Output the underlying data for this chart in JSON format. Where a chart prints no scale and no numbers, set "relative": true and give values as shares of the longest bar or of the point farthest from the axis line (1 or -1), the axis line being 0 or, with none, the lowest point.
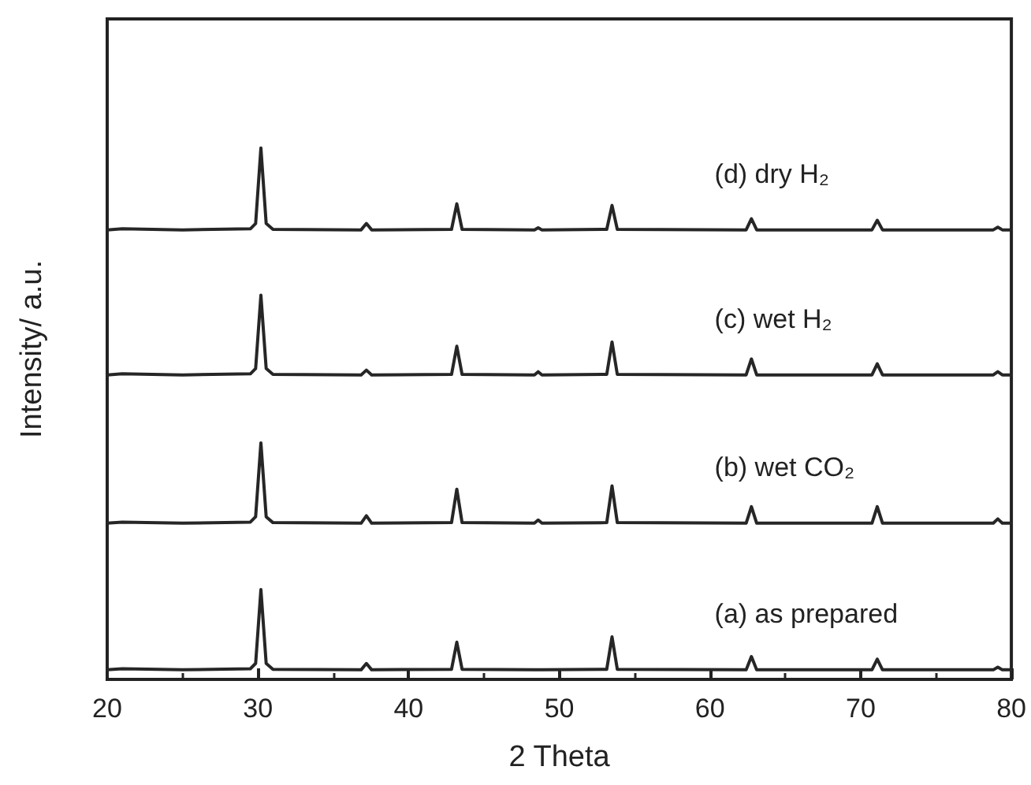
{
  "chart_data": {
    "type": "line",
    "relative": true,
    "xlabel": "2 Theta",
    "ylabel": "Intensity/ a.u.",
    "xlim": [
      20,
      80
    ],
    "xticks": [
      20,
      30,
      40,
      50,
      60,
      70,
      80
    ],
    "grid": false,
    "legend": false,
    "marker": "none",
    "line_style": "solid",
    "x": [
      20,
      21,
      25,
      29.5,
      29.85,
      30.2,
      30.55,
      31,
      36.85,
      37.2,
      37.55,
      42.85,
      43.2,
      43.55,
      48.35,
      48.6,
      48.85,
      53.15,
      53.5,
      53.85,
      62.4,
      62.75,
      63.1,
      70.75,
      71.1,
      71.45,
      78.8,
      79.1,
      79.4,
      80
    ],
    "series": [
      {
        "name": "(a) as prepared",
        "color": "#262626",
        "values": [
          0.018,
          0.02,
          0.018,
          0.02,
          0.03,
          0.169,
          0.03,
          0.019,
          0.018,
          0.03,
          0.018,
          0.019,
          0.07,
          0.019,
          0.018,
          0.018,
          0.018,
          0.019,
          0.08,
          0.019,
          0.018,
          0.043,
          0.018,
          0.018,
          0.038,
          0.018,
          0.018,
          0.023,
          0.018,
          0.018
        ]
      },
      {
        "name": "(b) wet CO₂",
        "color": "#262626",
        "values": [
          0.294,
          0.296,
          0.294,
          0.296,
          0.306,
          0.445,
          0.306,
          0.295,
          0.294,
          0.308,
          0.294,
          0.295,
          0.358,
          0.295,
          0.294,
          0.3,
          0.294,
          0.295,
          0.364,
          0.295,
          0.294,
          0.325,
          0.294,
          0.294,
          0.325,
          0.294,
          0.294,
          0.302,
          0.294,
          0.294
        ]
      },
      {
        "name": "(c) wet H₂",
        "color": "#262626",
        "values": [
          0.573,
          0.575,
          0.573,
          0.575,
          0.585,
          0.723,
          0.585,
          0.574,
          0.573,
          0.582,
          0.573,
          0.574,
          0.627,
          0.574,
          0.573,
          0.579,
          0.573,
          0.574,
          0.635,
          0.574,
          0.573,
          0.603,
          0.573,
          0.573,
          0.594,
          0.573,
          0.573,
          0.579,
          0.573,
          0.573
        ]
      },
      {
        "name": "(d) dry H₂",
        "color": "#262626",
        "values": [
          0.846,
          0.848,
          0.846,
          0.848,
          0.858,
          1,
          0.858,
          0.847,
          0.846,
          0.858,
          0.846,
          0.847,
          0.895,
          0.847,
          0.846,
          0.85,
          0.846,
          0.847,
          0.892,
          0.847,
          0.846,
          0.867,
          0.846,
          0.846,
          0.864,
          0.846,
          0.846,
          0.851,
          0.846,
          0.846
        ]
      }
    ]
  }
}
